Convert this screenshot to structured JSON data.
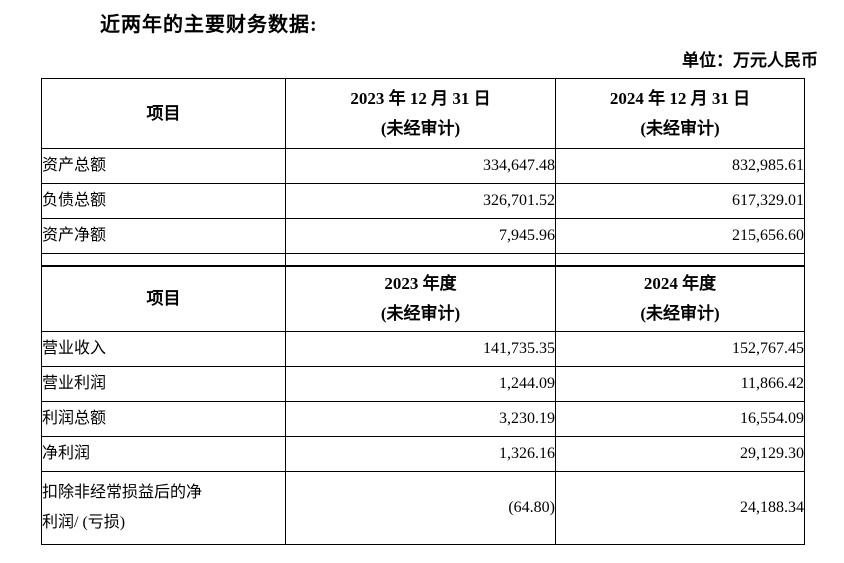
{
  "page": {
    "title": "近两年的主要财务数据:",
    "unit_label": "单位：万元人民币"
  },
  "table": {
    "section1": {
      "header": {
        "item": "项目",
        "col1": "2023 年 12 月 31 日",
        "col1_sub": "(未经审计)",
        "col2": "2024 年 12 月 31 日",
        "col2_sub": "(未经审计)"
      },
      "rows": [
        {
          "label": "资产总额",
          "v2023": "334,647.48",
          "v2024": "832,985.61"
        },
        {
          "label": "负债总额",
          "v2023": "326,701.52",
          "v2024": "617,329.01"
        },
        {
          "label": "资产净额",
          "v2023": "7,945.96",
          "v2024": "215,656.60"
        }
      ]
    },
    "section2": {
      "header": {
        "item": "项目",
        "col1": "2023 年度",
        "col1_sub": "(未经审计)",
        "col2": "2024 年度",
        "col2_sub": "(未经审计)"
      },
      "rows": [
        {
          "label": "营业收入",
          "v2023": "141,735.35",
          "v2024": "152,767.45"
        },
        {
          "label": "营业利润",
          "v2023": "1,244.09",
          "v2024": "11,866.42"
        },
        {
          "label": "利润总额",
          "v2023": "3,230.19",
          "v2024": "16,554.09"
        },
        {
          "label": "净利润",
          "v2023": "1,326.16",
          "v2024": "29,129.30"
        },
        {
          "label": "扣除非经常损益后的净\n利润/ (亏损)",
          "v2023": "(64.80)",
          "v2024": "24,188.34"
        }
      ]
    }
  }
}
